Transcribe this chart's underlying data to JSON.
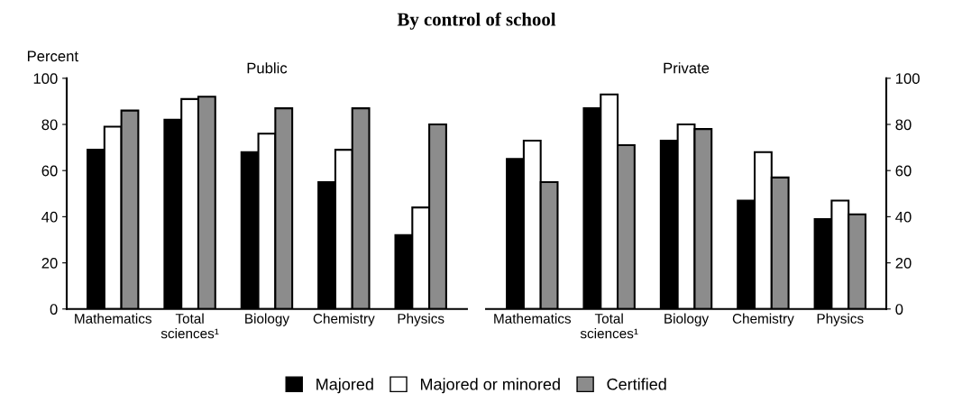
{
  "chart_data": [
    {
      "type": "bar",
      "title": "By control of school",
      "subtitle": "Public",
      "ylabel": "Percent",
      "categories": [
        "Mathematics",
        "Total\nsciences¹",
        "Biology",
        "Chemistry",
        "Physics"
      ],
      "series": [
        {
          "name": "Majored",
          "color": "#000000",
          "values": [
            69,
            82,
            68,
            55,
            32
          ]
        },
        {
          "name": "Majored or minored",
          "color": "#ffffff",
          "values": [
            79,
            91,
            76,
            69,
            44
          ]
        },
        {
          "name": "Certified",
          "color": "#8c8c8c",
          "values": [
            86,
            92,
            87,
            87,
            80
          ]
        }
      ],
      "ylim": [
        0,
        100
      ],
      "yticks": [
        0,
        20,
        40,
        60,
        80,
        100
      ],
      "grid": false,
      "legend": "bottom"
    },
    {
      "type": "bar",
      "subtitle": "Private",
      "categories": [
        "Mathematics",
        "Total\nsciences¹",
        "Biology",
        "Chemistry",
        "Physics"
      ],
      "series": [
        {
          "color": "#000000",
          "values": [
            65,
            87,
            73,
            47,
            39
          ]
        },
        {
          "color": "#ffffff",
          "values": [
            73,
            93,
            80,
            68,
            47
          ]
        },
        {
          "color": "#8c8c8c",
          "values": [
            55,
            71,
            78,
            57,
            41
          ]
        }
      ],
      "ylim": [
        0,
        100
      ],
      "yticks": [
        0,
        20,
        40,
        60,
        80,
        100
      ],
      "grid": false
    }
  ]
}
